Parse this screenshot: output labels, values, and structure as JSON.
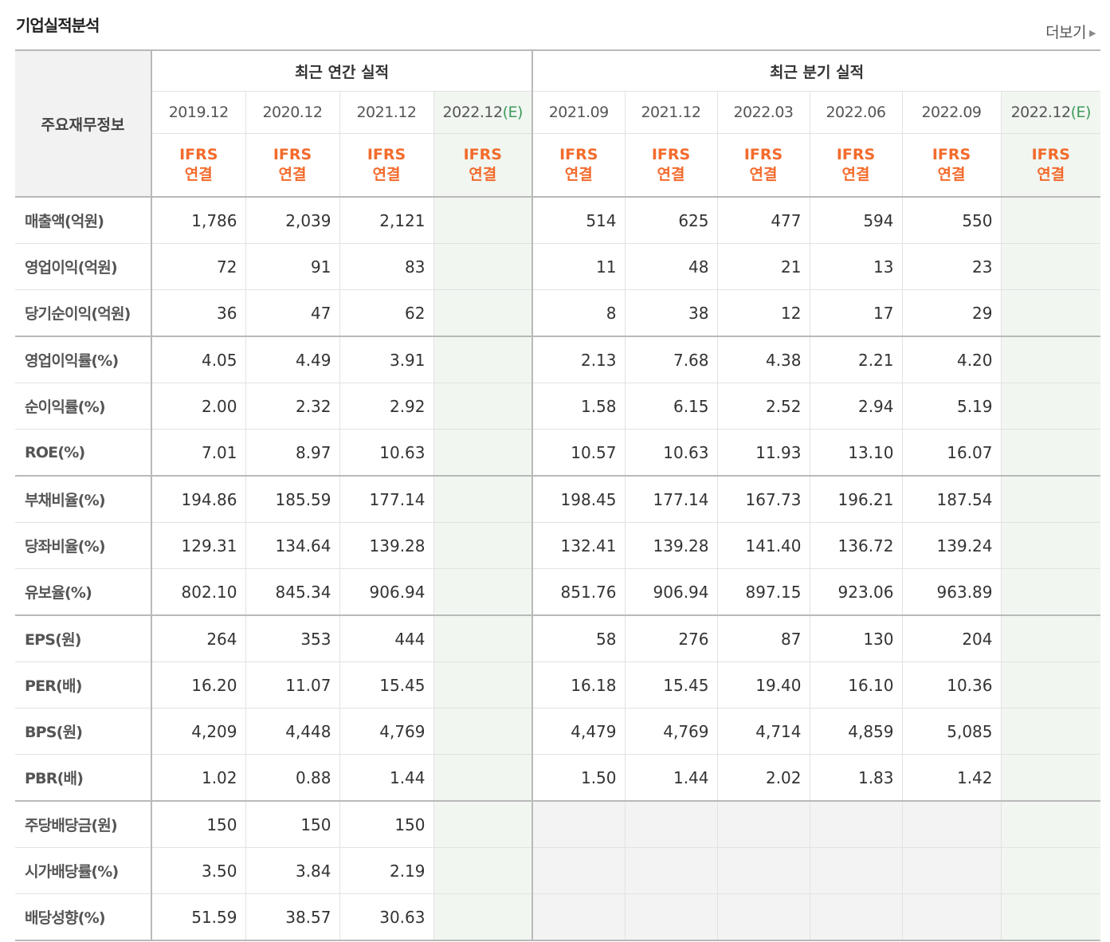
{
  "page_title": "기업실적분석",
  "more_link": "더보기",
  "table": {
    "corner_label": "주요재무정보",
    "group_annual": "최근 연간 실적",
    "group_quarter": "최근 분기 실적",
    "annual_periods": [
      {
        "label": "2019.12",
        "est": ""
      },
      {
        "label": "2020.12",
        "est": ""
      },
      {
        "label": "2021.12",
        "est": ""
      },
      {
        "label": "2022.12",
        "est": "(E)"
      }
    ],
    "quarter_periods": [
      {
        "label": "2021.09",
        "est": ""
      },
      {
        "label": "2021.12",
        "est": ""
      },
      {
        "label": "2022.03",
        "est": ""
      },
      {
        "label": "2022.06",
        "est": ""
      },
      {
        "label": "2022.09",
        "est": ""
      },
      {
        "label": "2022.12",
        "est": "(E)"
      }
    ],
    "ifrs_line1": "IFRS",
    "ifrs_line2": "연결",
    "rows": [
      {
        "label": "매출액(억원)",
        "values": [
          "1,786",
          "2,039",
          "2,121",
          "",
          "514",
          "625",
          "477",
          "594",
          "550",
          ""
        ],
        "group_end": false
      },
      {
        "label": "영업이익(억원)",
        "values": [
          "72",
          "91",
          "83",
          "",
          "11",
          "48",
          "21",
          "13",
          "23",
          ""
        ],
        "group_end": false
      },
      {
        "label": "당기순이익(억원)",
        "values": [
          "36",
          "47",
          "62",
          "",
          "8",
          "38",
          "12",
          "17",
          "29",
          ""
        ],
        "group_end": true
      },
      {
        "label": "영업이익률(%)",
        "values": [
          "4.05",
          "4.49",
          "3.91",
          "",
          "2.13",
          "7.68",
          "4.38",
          "2.21",
          "4.20",
          ""
        ],
        "group_end": false
      },
      {
        "label": "순이익률(%)",
        "values": [
          "2.00",
          "2.32",
          "2.92",
          "",
          "1.58",
          "6.15",
          "2.52",
          "2.94",
          "5.19",
          ""
        ],
        "group_end": false
      },
      {
        "label": "ROE(%)",
        "values": [
          "7.01",
          "8.97",
          "10.63",
          "",
          "10.57",
          "10.63",
          "11.93",
          "13.10",
          "16.07",
          ""
        ],
        "group_end": true
      },
      {
        "label": "부채비율(%)",
        "values": [
          "194.86",
          "185.59",
          "177.14",
          "",
          "198.45",
          "177.14",
          "167.73",
          "196.21",
          "187.54",
          ""
        ],
        "group_end": false
      },
      {
        "label": "당좌비율(%)",
        "values": [
          "129.31",
          "134.64",
          "139.28",
          "",
          "132.41",
          "139.28",
          "141.40",
          "136.72",
          "139.24",
          ""
        ],
        "group_end": false
      },
      {
        "label": "유보율(%)",
        "values": [
          "802.10",
          "845.34",
          "906.94",
          "",
          "851.76",
          "906.94",
          "897.15",
          "923.06",
          "963.89",
          ""
        ],
        "group_end": true
      },
      {
        "label": "EPS(원)",
        "values": [
          "264",
          "353",
          "444",
          "",
          "58",
          "276",
          "87",
          "130",
          "204",
          ""
        ],
        "group_end": false
      },
      {
        "label": "PER(배)",
        "values": [
          "16.20",
          "11.07",
          "15.45",
          "",
          "16.18",
          "15.45",
          "19.40",
          "16.10",
          "10.36",
          ""
        ],
        "group_end": false
      },
      {
        "label": "BPS(원)",
        "values": [
          "4,209",
          "4,448",
          "4,769",
          "",
          "4,479",
          "4,769",
          "4,714",
          "4,859",
          "5,085",
          ""
        ],
        "group_end": false
      },
      {
        "label": "PBR(배)",
        "values": [
          "1.02",
          "0.88",
          "1.44",
          "",
          "1.50",
          "1.44",
          "2.02",
          "1.83",
          "1.42",
          ""
        ],
        "group_end": true
      },
      {
        "label": "주당배당금(원)",
        "values": [
          "150",
          "150",
          "150",
          "",
          "",
          "",
          "",
          "",
          "",
          ""
        ],
        "group_end": false,
        "quarter_empty": true
      },
      {
        "label": "시가배당률(%)",
        "values": [
          "3.50",
          "3.84",
          "2.19",
          "",
          "",
          "",
          "",
          "",
          "",
          ""
        ],
        "group_end": false,
        "quarter_empty": true
      },
      {
        "label": "배당성향(%)",
        "values": [
          "51.59",
          "38.57",
          "30.63",
          "",
          "",
          "",
          "",
          "",
          "",
          ""
        ],
        "group_end": false,
        "quarter_empty": true
      }
    ]
  },
  "colors": {
    "ifrs": "#f36b2c",
    "estimate": "#3e9b5a",
    "estimate_bg": "#f1f6f1"
  }
}
